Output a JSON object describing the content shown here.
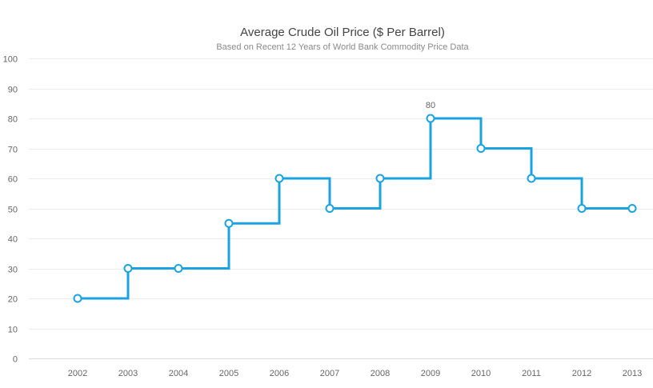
{
  "chart_data": {
    "type": "line",
    "step": true,
    "title": "Average Crude Oil Price ($ Per Barrel)",
    "subtitle": "Based on Recent 12 Years of World Bank Commodity Price Data",
    "categories": [
      "2002",
      "2003",
      "2004",
      "2005",
      "2006",
      "2007",
      "2008",
      "2009",
      "2010",
      "2011",
      "2012",
      "2013"
    ],
    "values": [
      20,
      30,
      30,
      45,
      60,
      50,
      60,
      80,
      70,
      60,
      50,
      50
    ],
    "ylim": [
      0,
      100
    ],
    "yticks": [
      0,
      10,
      20,
      30,
      40,
      50,
      60,
      70,
      80,
      90,
      100
    ],
    "grid": true,
    "annotations": [
      {
        "x": "2009",
        "label": "80"
      }
    ],
    "line_color": "#1aa3e0"
  }
}
